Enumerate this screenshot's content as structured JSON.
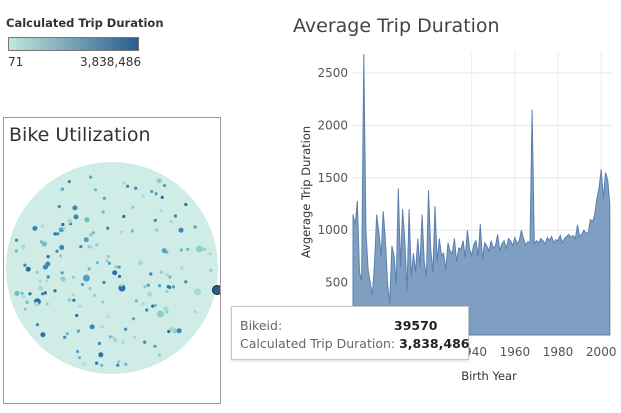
{
  "legend": {
    "title": "Calculated Trip Duration",
    "min_label": "71",
    "max_label": "3,838,486",
    "color_low": "#bfe6dc",
    "color_high": "#2a5d8f"
  },
  "bike_panel": {
    "title": "Bike Utilization"
  },
  "tooltip": {
    "bikeid_label": "Bikeid:",
    "bikeid_value": "39570",
    "duration_label": "Calculated Trip Duration:",
    "duration_value": "3,838,486"
  },
  "chart_data": {
    "type": "area",
    "title": "Average Trip Duration",
    "xlabel": "Birth Year",
    "ylabel": "Avgerage Trip Duration",
    "xlim": [
      1885,
      2005
    ],
    "ylim": [
      0,
      2700
    ],
    "x_ticks": [
      "1940",
      "1960",
      "1980",
      "2000"
    ],
    "y_ticks": [
      "500",
      "1000",
      "1500",
      "2000",
      "2500"
    ],
    "grid": true,
    "color": "#7f9fc2",
    "line_color": "#5b7fae",
    "x": [
      1885,
      1886,
      1887,
      1888,
      1889,
      1890,
      1891,
      1892,
      1893,
      1894,
      1895,
      1896,
      1897,
      1898,
      1899,
      1900,
      1901,
      1902,
      1903,
      1904,
      1905,
      1906,
      1907,
      1908,
      1909,
      1910,
      1911,
      1912,
      1913,
      1914,
      1915,
      1916,
      1917,
      1918,
      1919,
      1920,
      1921,
      1922,
      1923,
      1924,
      1925,
      1926,
      1927,
      1928,
      1929,
      1930,
      1931,
      1932,
      1933,
      1934,
      1935,
      1936,
      1937,
      1938,
      1939,
      1940,
      1941,
      1942,
      1943,
      1944,
      1945,
      1946,
      1947,
      1948,
      1949,
      1950,
      1951,
      1952,
      1953,
      1954,
      1955,
      1956,
      1957,
      1958,
      1959,
      1960,
      1961,
      1962,
      1963,
      1964,
      1965,
      1966,
      1967,
      1968,
      1969,
      1970,
      1971,
      1972,
      1973,
      1974,
      1975,
      1976,
      1977,
      1978,
      1979,
      1980,
      1981,
      1982,
      1983,
      1984,
      1985,
      1986,
      1987,
      1988,
      1989,
      1990,
      1991,
      1992,
      1993,
      1994,
      1995,
      1996,
      1997,
      1998,
      1999,
      2000,
      2001,
      2002,
      2003,
      2004
    ],
    "values": [
      1150,
      1050,
      1280,
      600,
      520,
      2680,
      1000,
      620,
      500,
      380,
      700,
      1150,
      980,
      750,
      1180,
      900,
      500,
      300,
      850,
      760,
      480,
      1400,
      650,
      1200,
      900,
      420,
      1200,
      550,
      780,
      600,
      920,
      650,
      1150,
      700,
      560,
      1380,
      820,
      600,
      1230,
      700,
      920,
      760,
      780,
      620,
      880,
      800,
      780,
      920,
      700,
      830,
      820,
      900,
      740,
      1000,
      820,
      760,
      870,
      900,
      750,
      1060,
      720,
      880,
      850,
      800,
      900,
      830,
      850,
      960,
      800,
      870,
      900,
      820,
      920,
      900,
      850,
      930,
      870,
      900,
      1000,
      920,
      860,
      890,
      880,
      2150,
      870,
      900,
      880,
      920,
      900,
      870,
      930,
      900,
      940,
      880,
      910,
      900,
      950,
      880,
      920,
      940,
      960,
      930,
      950,
      920,
      1050,
      940,
      960,
      1000,
      970,
      980,
      1100,
      1080,
      1150,
      1300,
      1400,
      1580,
      1300,
      1550,
      1480,
      1250
    ]
  }
}
